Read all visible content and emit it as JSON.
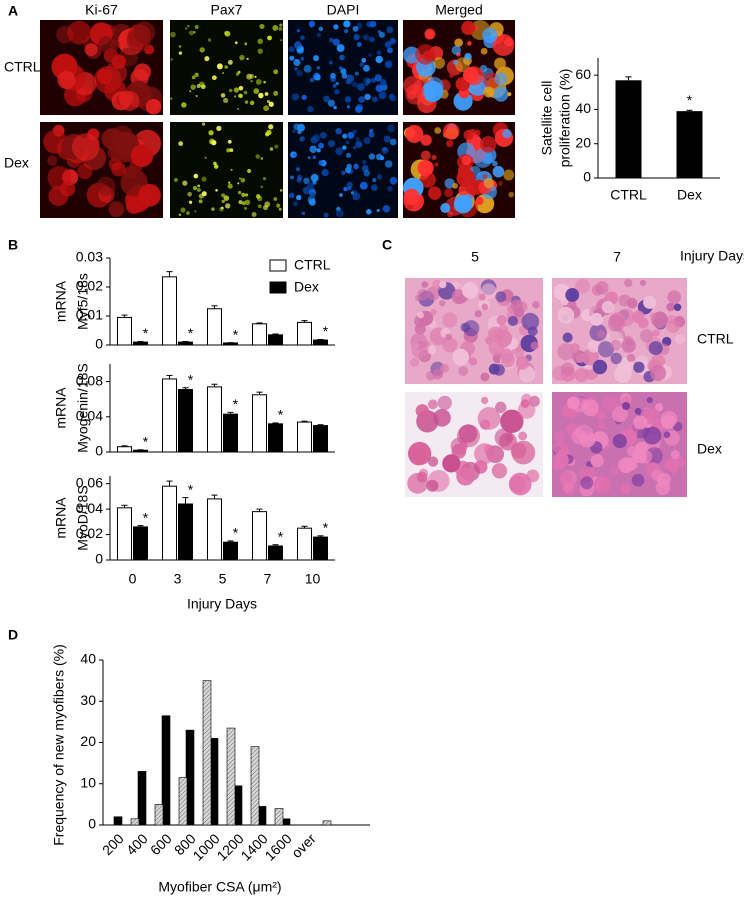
{
  "panel_labels": [
    "A",
    "B",
    "C",
    "D"
  ],
  "micrographs_a": {
    "columns": [
      "Ki-67",
      "Pax7",
      "DAPI",
      "Merged"
    ],
    "rows": [
      "CTRL",
      "Dex"
    ]
  },
  "micrographs_c": {
    "columns": [
      "5",
      "7"
    ],
    "axis_label": "Injury Days",
    "rows": [
      "CTRL",
      "Dex"
    ]
  },
  "chart_data": [
    {
      "type": "bar",
      "categories": [
        "CTRL",
        "Dex"
      ],
      "values": [
        57,
        39
      ],
      "errors": [
        2,
        0.5
      ],
      "significance": [
        null,
        "*"
      ],
      "color": "#000000",
      "ylabel": [
        "Satellite cell",
        "proliferation (%)"
      ],
      "ylim": [
        0,
        70
      ],
      "yticks": [
        0,
        20,
        40,
        60
      ]
    },
    {
      "type": "grouped_bar_stack",
      "categories": [
        "0",
        "3",
        "5",
        "7",
        "10"
      ],
      "xlabel": "Injury Days",
      "series": [
        {
          "name": "CTRL",
          "color": "#ffffff"
        },
        {
          "name": "Dex",
          "color": "#000000"
        }
      ],
      "subplots": [
        {
          "ylabel": [
            "mRNA",
            "Myf5/18s"
          ],
          "ylim": [
            0,
            0.03
          ],
          "yticks": [
            0,
            0.01,
            0.02,
            0.03
          ],
          "values": [
            [
              0.0095,
              0.0235,
              0.0125,
              0.0073,
              0.0078
            ],
            [
              0.001,
              0.001,
              0.0007,
              0.0035,
              0.0017
            ]
          ],
          "errors": [
            [
              0.0008,
              0.0018,
              0.001,
              0.0003,
              0.0006
            ],
            [
              0.0002,
              0.0002,
              0.0001,
              0.0003,
              0.0002
            ]
          ],
          "significance": [
            [
              null,
              null,
              null,
              null,
              null
            ],
            [
              "*",
              "*",
              "*",
              null,
              "*"
            ]
          ]
        },
        {
          "ylabel": [
            "mRNA",
            "Myogenin/18S"
          ],
          "ylim": [
            0,
            0.1
          ],
          "yticks": [
            0,
            0.04,
            0.08
          ],
          "values": [
            [
              0.006,
              0.083,
              0.074,
              0.065,
              0.034
            ],
            [
              0.002,
              0.071,
              0.043,
              0.032,
              0.03
            ]
          ],
          "errors": [
            [
              0.001,
              0.004,
              0.003,
              0.003,
              0.001
            ],
            [
              0.0005,
              0.002,
              0.002,
              0.001,
              0.001
            ]
          ],
          "significance": [
            [
              null,
              null,
              null,
              null,
              null
            ],
            [
              "*",
              "*",
              "*",
              "*",
              null
            ]
          ]
        },
        {
          "ylabel": [
            "mRNA",
            "MyoD/18S"
          ],
          "ylim": [
            0,
            0.066
          ],
          "yticks": [
            0,
            0.02,
            0.04,
            0.06
          ],
          "values": [
            [
              0.041,
              0.058,
              0.048,
              0.038,
              0.025
            ],
            [
              0.026,
              0.044,
              0.014,
              0.011,
              0.018
            ]
          ],
          "errors": [
            [
              0.002,
              0.004,
              0.003,
              0.002,
              0.0015
            ],
            [
              0.001,
              0.005,
              0.001,
              0.001,
              0.001
            ]
          ],
          "significance": [
            [
              null,
              null,
              null,
              null,
              null
            ],
            [
              "*",
              "*",
              "*",
              "*",
              "*"
            ]
          ]
        }
      ]
    },
    {
      "type": "histogram_pairs",
      "categories": [
        "200",
        "400",
        "600",
        "800",
        "1000",
        "1200",
        "1400",
        "1600",
        "over"
      ],
      "series": [
        {
          "color": "#000000",
          "hatch": false,
          "values": [
            2,
            13,
            26.5,
            23,
            21,
            9.5,
            4.5,
            1.5,
            0
          ]
        },
        {
          "color": "#c8c8c8",
          "hatch": true,
          "values": [
            1.5,
            5,
            11.5,
            35,
            23.5,
            19,
            4,
            0,
            1
          ]
        }
      ],
      "ylabel": "Frequency of new myofibers (%)",
      "xlabel": "Myofiber CSA (μm²)",
      "ylim": [
        0,
        40
      ],
      "yticks": [
        0,
        10,
        20,
        30,
        40
      ]
    }
  ]
}
